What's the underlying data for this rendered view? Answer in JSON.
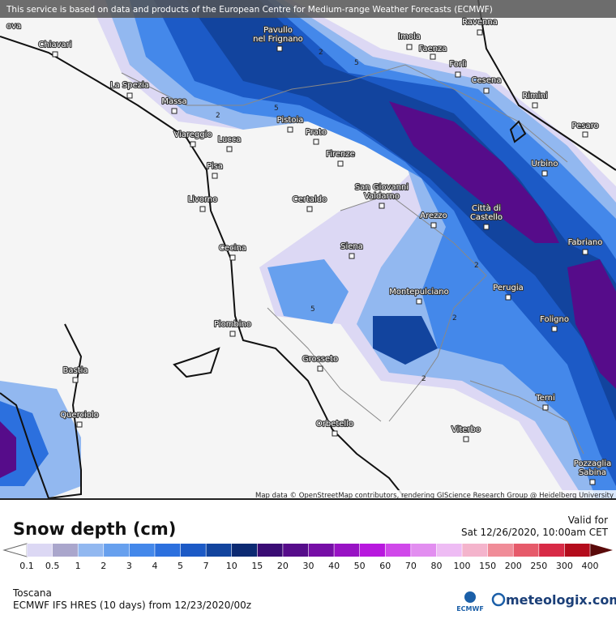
{
  "header": {
    "notice": "This service is based on data and products of the European Centre for Medium-range Weather Forecasts (ECMWF)"
  },
  "map": {
    "cities": [
      {
        "lines": [
          "ova"
        ]
      },
      {
        "lines": [
          "Chiavari"
        ]
      },
      {
        "lines": [
          "Pavullo",
          "nel Frignano"
        ]
      },
      {
        "lines": [
          "Imola"
        ]
      },
      {
        "lines": [
          "Ravenna"
        ]
      },
      {
        "lines": [
          "Faenza"
        ]
      },
      {
        "lines": [
          "Forlì"
        ]
      },
      {
        "lines": [
          "Cesena"
        ]
      },
      {
        "lines": [
          "Rimini"
        ]
      },
      {
        "lines": [
          "Pesaro"
        ]
      },
      {
        "lines": [
          "Urbino"
        ]
      },
      {
        "lines": [
          "La Spezia"
        ]
      },
      {
        "lines": [
          "Massa"
        ]
      },
      {
        "lines": [
          "Viareggio"
        ]
      },
      {
        "lines": [
          "Lucca"
        ]
      },
      {
        "lines": [
          "Pistoia"
        ]
      },
      {
        "lines": [
          "Prato"
        ]
      },
      {
        "lines": [
          "Firenze"
        ]
      },
      {
        "lines": [
          "Pisa"
        ]
      },
      {
        "lines": [
          "Livorno"
        ]
      },
      {
        "lines": [
          "Certaldo"
        ]
      },
      {
        "lines": [
          "San Giovanni",
          "Valdarno"
        ]
      },
      {
        "lines": [
          "Arezzo"
        ]
      },
      {
        "lines": [
          "Città di",
          "Castello"
        ]
      },
      {
        "lines": [
          "Fabriano"
        ]
      },
      {
        "lines": [
          "Siena"
        ]
      },
      {
        "lines": [
          "Cecina"
        ]
      },
      {
        "lines": [
          "Montepulciano"
        ]
      },
      {
        "lines": [
          "Perugia"
        ]
      },
      {
        "lines": [
          "Foligno"
        ]
      },
      {
        "lines": [
          "Piombino"
        ]
      },
      {
        "lines": [
          "Grosseto"
        ]
      },
      {
        "lines": [
          "Bastia"
        ]
      },
      {
        "lines": [
          "Terni"
        ]
      },
      {
        "lines": [
          "Querciolo"
        ]
      },
      {
        "lines": [
          "Orbetello"
        ]
      },
      {
        "lines": [
          "Viterbo"
        ]
      },
      {
        "lines": [
          "Pozzaglia",
          "Sabina"
        ]
      }
    ],
    "contour_labels": [
      "2",
      "5",
      "2",
      "5",
      "2",
      "5",
      "2",
      "2"
    ],
    "attribution": "Map data © OpenStreetMap contributors, rendering GIScience Research Group @ Heidelberg University"
  },
  "legend": {
    "title": "Snow depth (cm)",
    "valid_label": "Valid for",
    "valid_time": "Sat 12/26/2020, 10:00am CET",
    "stops": [
      0.1,
      0.5,
      1,
      2,
      3,
      4,
      5,
      7,
      10,
      15,
      20,
      30,
      40,
      50,
      60,
      70,
      80,
      100,
      150,
      200,
      250,
      300,
      400
    ],
    "colors": [
      "#dcd8f4",
      "#aaa6cc",
      "#92b8f0",
      "#67a0ee",
      "#4488ea",
      "#2c70de",
      "#1c5ac6",
      "#12449e",
      "#0c2a72",
      "#3a0c74",
      "#560c8a",
      "#760ea6",
      "#9812c4",
      "#b818de",
      "#d048ea",
      "#e28ef0",
      "#eebcf4",
      "#f4b4cc",
      "#f08c98",
      "#e65a6a",
      "#d82a46",
      "#b40c1c"
    ]
  },
  "footer": {
    "region": "Toscana",
    "model": "ECMWF IFS HRES (10 days) from 12/23/2020/00z",
    "ecmwf": "ECMWF",
    "brand": "meteologix.com"
  }
}
